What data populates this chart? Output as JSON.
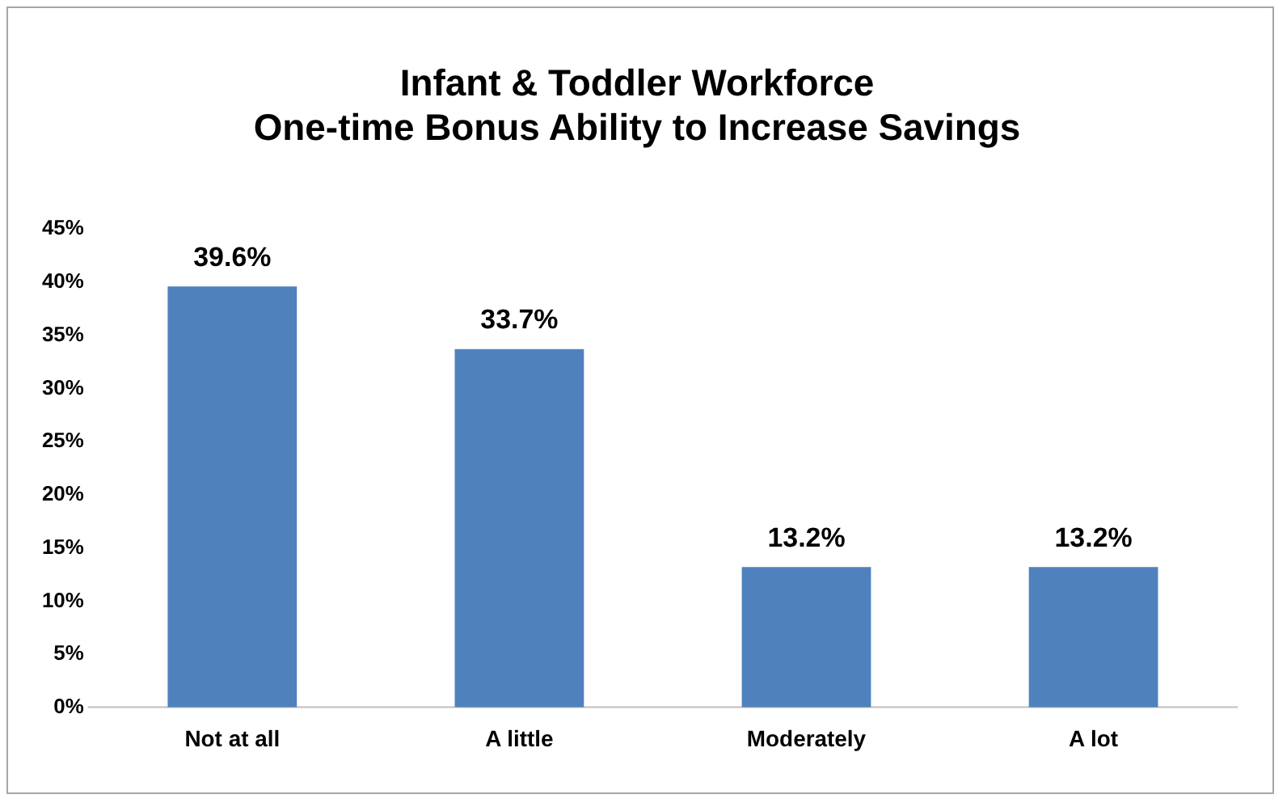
{
  "chart_data": {
    "type": "bar",
    "title": "Infant & Toddler Workforce\nOne-time Bonus Ability to Increase Savings",
    "categories": [
      "Not at all",
      "A little",
      "Moderately",
      "A lot"
    ],
    "values": [
      39.6,
      33.7,
      13.2,
      13.2
    ],
    "value_labels": [
      "39.6%",
      "33.7%",
      "13.2%",
      "13.2%"
    ],
    "color": "#4f81bd",
    "ylim": [
      0,
      45
    ],
    "yticks": [
      {
        "value": 0,
        "label": "0%"
      },
      {
        "value": 5,
        "label": "5%"
      },
      {
        "value": 10,
        "label": "10%"
      },
      {
        "value": 15,
        "label": "15%"
      },
      {
        "value": 20,
        "label": "20%"
      },
      {
        "value": 25,
        "label": "25%"
      },
      {
        "value": 30,
        "label": "30%"
      },
      {
        "value": 35,
        "label": "35%"
      },
      {
        "value": 40,
        "label": "40%"
      },
      {
        "value": 45,
        "label": "45%"
      }
    ],
    "grid": false,
    "legend": false
  }
}
